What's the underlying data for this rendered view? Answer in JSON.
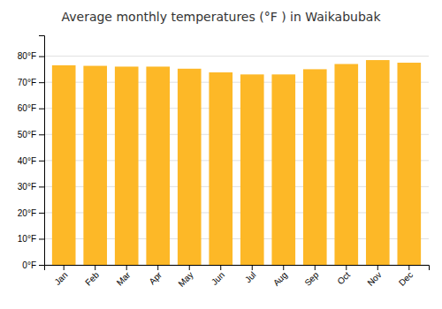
{
  "chart_data": {
    "type": "bar",
    "title": "Average monthly temperatures (°F ) in Waikabubak",
    "categories": [
      "Jan",
      "Feb",
      "Mar",
      "Apr",
      "May",
      "Jun",
      "Jul",
      "Aug",
      "Sep",
      "Oct",
      "Nov",
      "Dec"
    ],
    "values": [
      76.5,
      76.3,
      76.0,
      76.0,
      75.2,
      73.8,
      73.0,
      73.0,
      75.0,
      77.0,
      78.5,
      77.5
    ],
    "color": "#FDB827",
    "ylim": [
      0,
      88
    ],
    "yticks": [
      {
        "value": 0,
        "label": "0°F"
      },
      {
        "value": 10,
        "label": "10°F"
      },
      {
        "value": 20,
        "label": "20°F"
      },
      {
        "value": 30,
        "label": "30°F"
      },
      {
        "value": 40,
        "label": "40°F"
      },
      {
        "value": 50,
        "label": "50°F"
      },
      {
        "value": 60,
        "label": "60°F"
      },
      {
        "value": 70,
        "label": "70°F"
      },
      {
        "value": 80,
        "label": "80°F"
      }
    ],
    "grid": true
  }
}
